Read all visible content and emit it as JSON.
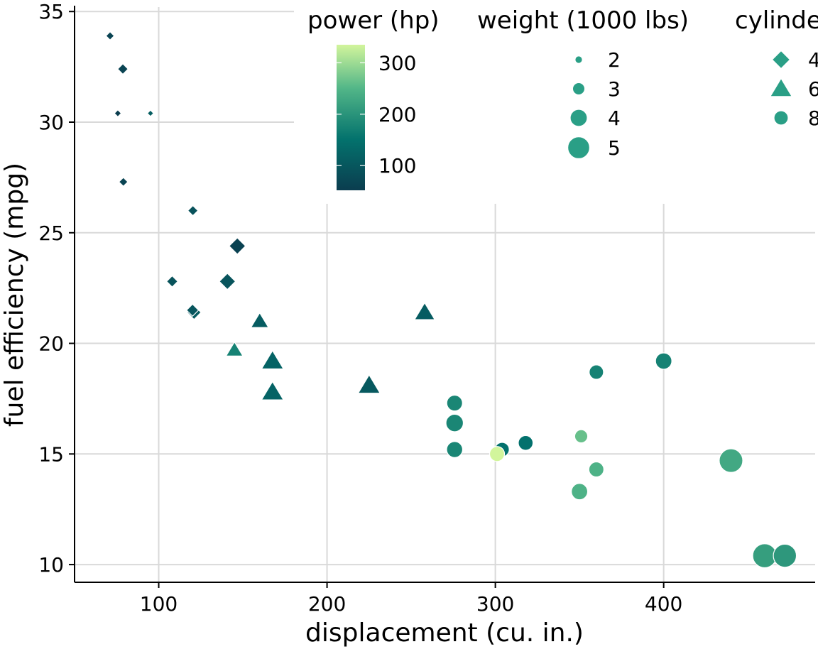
{
  "chart_data": {
    "type": "scatter",
    "xlabel": "displacement (cu. in.)",
    "ylabel": "fuel efficiency (mpg)",
    "xlim": [
      50,
      490
    ],
    "ylim": [
      9.2,
      35.2
    ],
    "x_ticks": [
      100,
      200,
      300,
      400
    ],
    "y_ticks": [
      10,
      15,
      20,
      25,
      30,
      35
    ],
    "grid": true,
    "legend": {
      "placement": "top, inside plot (partially clipped at right)",
      "color_title": "power (hp)",
      "color_ticks": [
        100,
        200,
        300
      ],
      "color_range": [
        52,
        335
      ],
      "size_title": "weight (1000 lbs)",
      "size_entries": [
        2,
        3,
        4,
        5
      ],
      "shape_title": "cylinders",
      "shape_entries": [
        {
          "label": "4",
          "shape": "diamond"
        },
        {
          "label": "6",
          "shape": "triangle"
        },
        {
          "label": "8",
          "shape": "circle"
        }
      ]
    },
    "colors": {
      "scale_low": "#0b3d4f",
      "scale_mid": "#03726d",
      "scale_high": "#d2f59c",
      "legend_symbol": "#2a9f86",
      "grid": "#d9d9d9",
      "axis": "#000000"
    },
    "points": [
      {
        "disp": 71.1,
        "mpg": 33.9,
        "hp": 65,
        "wt": 1.835,
        "cyl": 4
      },
      {
        "disp": 78.7,
        "mpg": 32.4,
        "hp": 66,
        "wt": 2.2,
        "cyl": 4
      },
      {
        "disp": 75.7,
        "mpg": 30.4,
        "hp": 52,
        "wt": 1.615,
        "cyl": 4
      },
      {
        "disp": 95.1,
        "mpg": 30.4,
        "hp": 113,
        "wt": 1.513,
        "cyl": 4
      },
      {
        "disp": 79.0,
        "mpg": 27.3,
        "hp": 66,
        "wt": 1.935,
        "cyl": 4
      },
      {
        "disp": 120.3,
        "mpg": 26.0,
        "hp": 91,
        "wt": 2.14,
        "cyl": 4
      },
      {
        "disp": 146.7,
        "mpg": 24.4,
        "hp": 62,
        "wt": 3.19,
        "cyl": 4
      },
      {
        "disp": 108.0,
        "mpg": 22.8,
        "hp": 93,
        "wt": 2.32,
        "cyl": 4
      },
      {
        "disp": 140.8,
        "mpg": 22.8,
        "hp": 95,
        "wt": 3.15,
        "cyl": 4
      },
      {
        "disp": 121.0,
        "mpg": 21.4,
        "hp": 109,
        "wt": 2.78,
        "cyl": 4
      },
      {
        "disp": 120.1,
        "mpg": 21.5,
        "hp": 97,
        "wt": 2.465,
        "cyl": 4
      },
      {
        "disp": 160.0,
        "mpg": 21.0,
        "hp": 110,
        "wt": 2.62,
        "cyl": 6
      },
      {
        "disp": 160.0,
        "mpg": 21.0,
        "hp": 110,
        "wt": 2.875,
        "cyl": 6
      },
      {
        "disp": 258.0,
        "mpg": 21.4,
        "hp": 110,
        "wt": 3.215,
        "cyl": 6
      },
      {
        "disp": 145.0,
        "mpg": 19.7,
        "hp": 175,
        "wt": 2.77,
        "cyl": 6
      },
      {
        "disp": 167.6,
        "mpg": 19.2,
        "hp": 123,
        "wt": 3.44,
        "cyl": 6
      },
      {
        "disp": 167.6,
        "mpg": 17.8,
        "hp": 123,
        "wt": 3.44,
        "cyl": 6
      },
      {
        "disp": 225.0,
        "mpg": 18.1,
        "hp": 105,
        "wt": 3.46,
        "cyl": 6
      },
      {
        "disp": 400.0,
        "mpg": 19.2,
        "hp": 175,
        "wt": 3.845,
        "cyl": 8
      },
      {
        "disp": 360.0,
        "mpg": 18.7,
        "hp": 175,
        "wt": 3.44,
        "cyl": 8
      },
      {
        "disp": 275.8,
        "mpg": 17.3,
        "hp": 180,
        "wt": 3.73,
        "cyl": 8
      },
      {
        "disp": 275.8,
        "mpg": 16.4,
        "hp": 180,
        "wt": 4.07,
        "cyl": 8
      },
      {
        "disp": 275.8,
        "mpg": 15.2,
        "hp": 180,
        "wt": 3.78,
        "cyl": 8
      },
      {
        "disp": 304.0,
        "mpg": 15.2,
        "hp": 150,
        "wt": 3.435,
        "cyl": 8
      },
      {
        "disp": 318.0,
        "mpg": 15.5,
        "hp": 150,
        "wt": 3.52,
        "cyl": 8
      },
      {
        "disp": 301.0,
        "mpg": 15.0,
        "hp": 335,
        "wt": 3.57,
        "cyl": 8
      },
      {
        "disp": 351.0,
        "mpg": 15.8,
        "hp": 264,
        "wt": 3.17,
        "cyl": 8
      },
      {
        "disp": 360.0,
        "mpg": 14.3,
        "hp": 245,
        "wt": 3.57,
        "cyl": 8
      },
      {
        "disp": 350.0,
        "mpg": 13.3,
        "hp": 245,
        "wt": 3.84,
        "cyl": 8
      },
      {
        "disp": 440.0,
        "mpg": 14.7,
        "hp": 230,
        "wt": 5.345,
        "cyl": 8
      },
      {
        "disp": 460.0,
        "mpg": 10.4,
        "hp": 215,
        "wt": 5.424,
        "cyl": 8
      },
      {
        "disp": 472.0,
        "mpg": 10.4,
        "hp": 205,
        "wt": 5.25,
        "cyl": 8
      }
    ]
  }
}
